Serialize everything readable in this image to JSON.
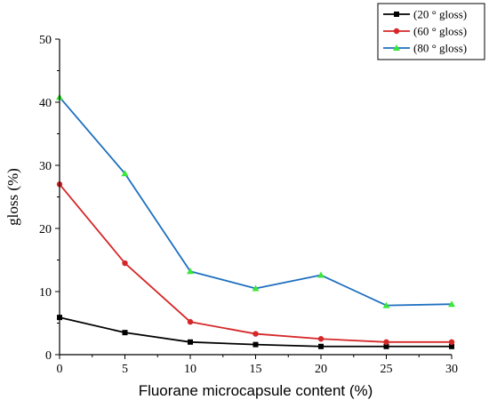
{
  "chart_data": {
    "type": "line",
    "x": [
      0,
      5,
      10,
      15,
      20,
      25,
      30
    ],
    "xlabel": "Fluorane microcapsule content (%)",
    "ylabel": "gloss (%)",
    "xlim": [
      0,
      30
    ],
    "ylim": [
      0,
      50
    ],
    "xticks": [
      "0",
      "5",
      "10",
      "15",
      "20",
      "25",
      "30"
    ],
    "yticks": [
      "0",
      "10",
      "20",
      "30",
      "40",
      "50"
    ],
    "grid": false,
    "legend_position": "top-right",
    "series": [
      {
        "name": "(20 ° gloss)",
        "color": "#000000",
        "marker": "square",
        "values": [
          5.9,
          3.5,
          2.0,
          1.6,
          1.3,
          1.3,
          1.3
        ]
      },
      {
        "name": "(60 ° gloss)",
        "color": "#d62728",
        "marker": "circle",
        "values": [
          27.0,
          14.5,
          5.2,
          3.3,
          2.5,
          2.0,
          2.0
        ]
      },
      {
        "name": "(80 ° gloss)",
        "color": "#1f6fc0",
        "marker": "triangle",
        "marker_color": "#39e639",
        "values": [
          40.8,
          28.7,
          13.2,
          10.5,
          12.6,
          7.8,
          8.0
        ]
      }
    ]
  }
}
